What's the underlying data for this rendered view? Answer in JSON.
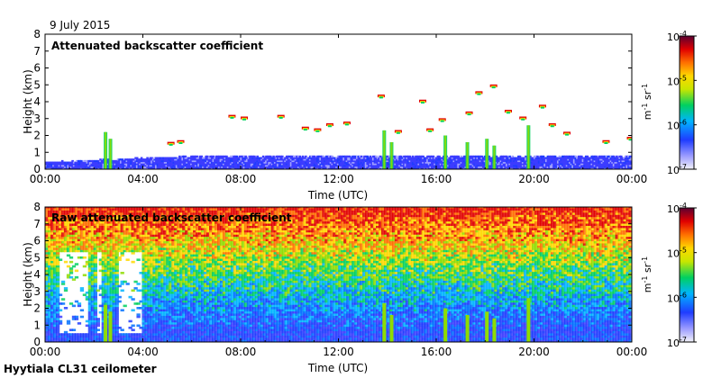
{
  "figure": {
    "date": "9 July 2015",
    "footer": "Hyytiala CL31 ceilometer"
  },
  "chart_data": [
    {
      "type": "heatmap",
      "title": "Attenuated backscatter coefficient",
      "xlabel": "Time (UTC)",
      "ylabel": "Height (km)",
      "xlim": [
        0,
        24
      ],
      "ylim": [
        0,
        8
      ],
      "x_ticks": [
        "00:00",
        "04:00",
        "08:00",
        "12:00",
        "16:00",
        "20:00",
        "00:00"
      ],
      "y_ticks": [
        "0",
        "1",
        "2",
        "3",
        "4",
        "5",
        "6",
        "7",
        "8"
      ],
      "colorbar": {
        "label": "m-1 sr-1",
        "ticks": [
          "10-4",
          "10-5",
          "10-6",
          "10-7"
        ],
        "scale": "log",
        "range": [
          1e-07,
          0.0001
        ]
      },
      "features": [
        {
          "name": "boundary layer",
          "t_start": 0,
          "t_end": 24,
          "h_top": 0.7
        },
        {
          "name": "cloud",
          "t": 2.5,
          "h_base": 0.1,
          "h_top": 2.2
        },
        {
          "name": "cloud",
          "t": 14.0,
          "h_base": 0.1,
          "h_top": 4.3
        },
        {
          "name": "cloud",
          "t": 18.0,
          "h_base": 0.1,
          "h_top": 4.9
        },
        {
          "name": "cloud",
          "t": 20.0,
          "h_base": 0.1,
          "h_top": 3.9
        }
      ]
    },
    {
      "type": "heatmap",
      "title": "Raw attenuated backscatter coefficient",
      "xlabel": "Time (UTC)",
      "ylabel": "Height (km)",
      "xlim": [
        0,
        24
      ],
      "ylim": [
        0,
        8
      ],
      "x_ticks": [
        "00:00",
        "04:00",
        "08:00",
        "12:00",
        "16:00",
        "20:00",
        "00:00"
      ],
      "y_ticks": [
        "0",
        "1",
        "2",
        "3",
        "4",
        "5",
        "6",
        "7",
        "8"
      ],
      "colorbar": {
        "label": "m-1 sr-1",
        "ticks": [
          "10-4",
          "10-5",
          "10-6",
          "10-7"
        ],
        "scale": "log",
        "range": [
          1e-07,
          0.0001
        ]
      },
      "features": [
        {
          "name": "background noise",
          "t_start": 0,
          "t_end": 24,
          "h_base": 1.5,
          "h_top": 8
        }
      ]
    }
  ]
}
